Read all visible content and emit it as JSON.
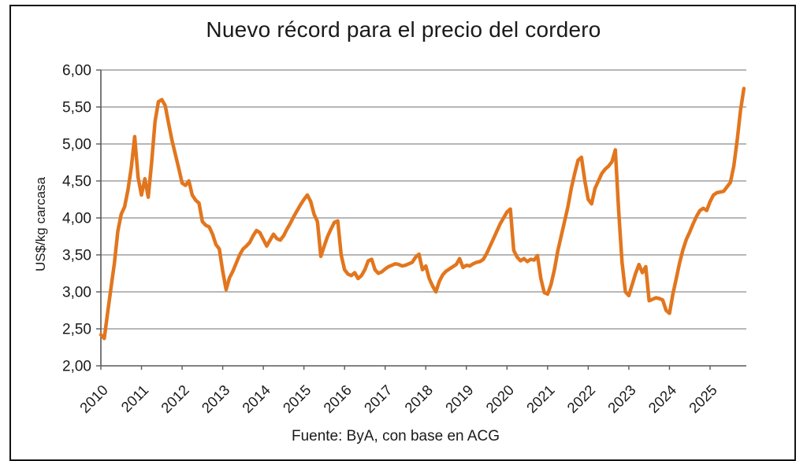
{
  "title": "Nuevo récord para el precio del cordero",
  "source": "Fuente: ByA, con base en ACG",
  "y_axis": {
    "label": "US$/kg carcasa",
    "tick_labels_top_down": [
      "6,00",
      "5,50",
      "5,00",
      "4,50",
      "4,00",
      "3,50",
      "3,00",
      "2,50",
      "2,00"
    ],
    "min": 2.0,
    "max": 6.0,
    "step": 0.5
  },
  "x_axis": {
    "tick_labels": [
      "2010",
      "2011",
      "2012",
      "2013",
      "2014",
      "2015",
      "2016",
      "2017",
      "2018",
      "2019",
      "2020",
      "2021",
      "2022",
      "2023",
      "2024",
      "2025"
    ]
  },
  "chart_data": {
    "type": "line",
    "series_name": "Precio del cordero",
    "title": "Nuevo récord para el precio del cordero",
    "xlabel": "",
    "ylabel": "US$/kg carcasa",
    "ylim": [
      2.0,
      6.0
    ],
    "xlim": [
      2010,
      2026.1
    ],
    "x_start": "2010-01",
    "x_interval": "monthly",
    "grid": "horizontal",
    "legend": "none",
    "style": {
      "line_color": "#E2761E",
      "grid_color": "#8c8c8c",
      "axis_color": "#595959",
      "line_width": 4.5
    },
    "values": [
      2.42,
      2.37,
      2.72,
      3.06,
      3.39,
      3.82,
      4.05,
      4.15,
      4.38,
      4.68,
      5.1,
      4.55,
      4.31,
      4.53,
      4.28,
      4.75,
      5.3,
      5.57,
      5.6,
      5.52,
      5.28,
      5.05,
      4.86,
      4.67,
      4.47,
      4.44,
      4.5,
      4.31,
      4.24,
      4.2,
      3.95,
      3.9,
      3.88,
      3.78,
      3.64,
      3.58,
      3.28,
      3.03,
      3.19,
      3.28,
      3.39,
      3.5,
      3.58,
      3.62,
      3.67,
      3.76,
      3.83,
      3.8,
      3.71,
      3.62,
      3.7,
      3.78,
      3.72,
      3.7,
      3.76,
      3.85,
      3.93,
      4.02,
      4.1,
      4.18,
      4.25,
      4.31,
      4.22,
      4.05,
      3.95,
      3.48,
      3.62,
      3.75,
      3.85,
      3.94,
      3.96,
      3.5,
      3.3,
      3.24,
      3.22,
      3.26,
      3.18,
      3.22,
      3.3,
      3.42,
      3.44,
      3.3,
      3.25,
      3.27,
      3.31,
      3.34,
      3.36,
      3.38,
      3.37,
      3.35,
      3.36,
      3.38,
      3.4,
      3.47,
      3.51,
      3.3,
      3.35,
      3.18,
      3.08,
      3.0,
      3.14,
      3.23,
      3.28,
      3.31,
      3.34,
      3.37,
      3.45,
      3.33,
      3.36,
      3.35,
      3.38,
      3.4,
      3.41,
      3.44,
      3.52,
      3.62,
      3.72,
      3.82,
      3.92,
      4.0,
      4.08,
      4.12,
      3.56,
      3.47,
      3.42,
      3.45,
      3.41,
      3.44,
      3.43,
      3.49,
      3.18,
      2.99,
      2.97,
      3.1,
      3.3,
      3.55,
      3.75,
      3.95,
      4.15,
      4.4,
      4.6,
      4.78,
      4.82,
      4.5,
      4.25,
      4.19,
      4.4,
      4.5,
      4.6,
      4.66,
      4.7,
      4.76,
      4.92,
      4.1,
      3.4,
      3.0,
      2.95,
      3.1,
      3.25,
      3.37,
      3.26,
      3.34,
      2.88,
      2.9,
      2.92,
      2.91,
      2.89,
      2.75,
      2.71,
      2.97,
      3.18,
      3.39,
      3.57,
      3.71,
      3.81,
      3.92,
      4.02,
      4.1,
      4.13,
      4.1,
      4.22,
      4.31,
      4.34,
      4.35,
      4.36,
      4.42,
      4.48,
      4.7,
      5.05,
      5.45,
      5.75
    ]
  }
}
